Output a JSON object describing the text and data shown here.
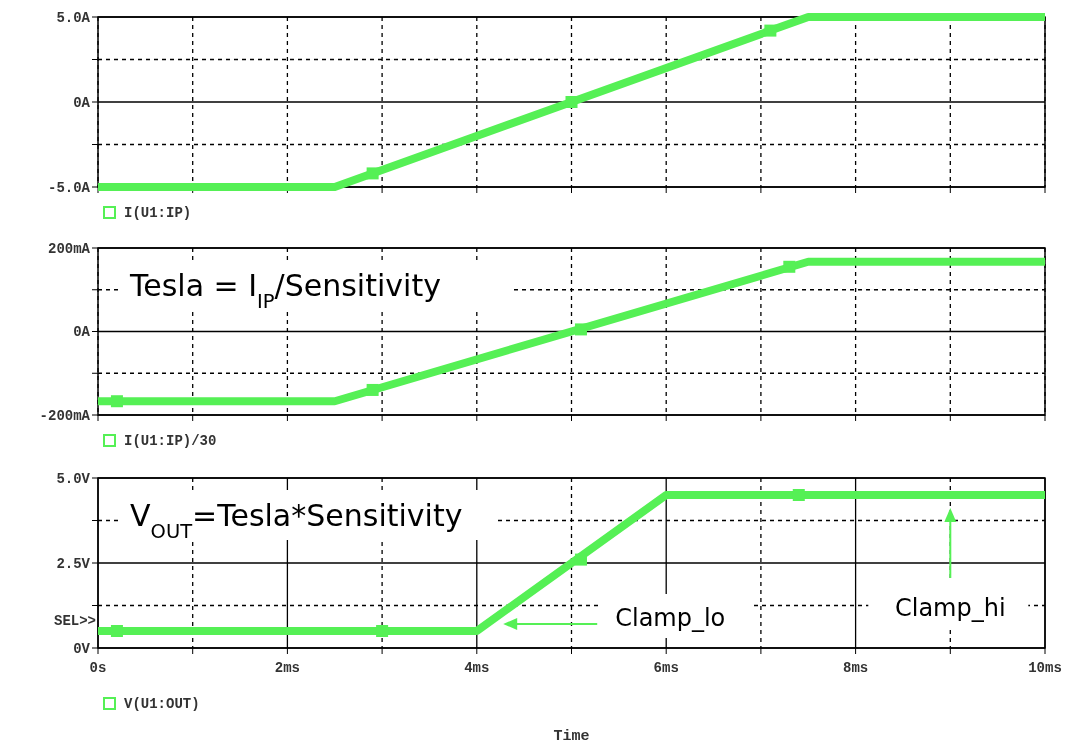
{
  "chart_data": [
    {
      "type": "line",
      "x": [
        0,
        2.5,
        7.5,
        10
      ],
      "xlim": [
        0,
        10
      ],
      "xticks": [
        {
          "value": 0,
          "label": null
        },
        {
          "value": 1,
          "label": null
        },
        {
          "value": 2,
          "label": null
        },
        {
          "value": 3,
          "label": null
        },
        {
          "value": 4,
          "label": null
        },
        {
          "value": 5,
          "label": null
        },
        {
          "value": 6,
          "label": null
        },
        {
          "value": 7,
          "label": null
        },
        {
          "value": 8,
          "label": null
        },
        {
          "value": 9,
          "label": null
        },
        {
          "value": 10,
          "label": null
        }
      ],
      "ylim": [
        -5,
        5
      ],
      "yticks": [
        {
          "value": -5,
          "label": "-5.0A"
        },
        {
          "value": -2.5,
          "label": null
        },
        {
          "value": 0,
          "label": "0A"
        },
        {
          "value": 2.5,
          "label": null
        },
        {
          "value": 5,
          "label": "5.0A"
        }
      ],
      "grid": true,
      "legend": "bottom left",
      "tick_labels": "y",
      "line_style": "solid",
      "series": [
        {
          "name": "I(U1:IP)",
          "color": "#55f055",
          "values": [
            -5,
            -5,
            5,
            5
          ],
          "marker": "none"
        },
        {
          "type": "scatter",
          "color": "#55f055",
          "x": [
            2.9,
            5.0,
            7.1
          ],
          "values": [
            -4.2,
            0,
            4.2
          ],
          "marker": "square"
        }
      ]
    },
    {
      "type": "line",
      "x": [
        0,
        2.5,
        7.5,
        10
      ],
      "xlim": [
        0,
        10
      ],
      "xticks": [
        {
          "value": 0,
          "label": null
        },
        {
          "value": 1,
          "label": null
        },
        {
          "value": 2,
          "label": null
        },
        {
          "value": 3,
          "label": null
        },
        {
          "value": 4,
          "label": null
        },
        {
          "value": 5,
          "label": null
        },
        {
          "value": 6,
          "label": null
        },
        {
          "value": 7,
          "label": null
        },
        {
          "value": 8,
          "label": null
        },
        {
          "value": 9,
          "label": null
        },
        {
          "value": 10,
          "label": null
        }
      ],
      "ylim": [
        -200,
        200
      ],
      "yticks": [
        {
          "value": -200,
          "label": "-200mA"
        },
        {
          "value": -100,
          "label": null
        },
        {
          "value": 0,
          "label": "0A"
        },
        {
          "value": 100,
          "label": null
        },
        {
          "value": 200,
          "label": "200mA"
        }
      ],
      "grid": true,
      "legend": "bottom left",
      "tick_labels": "y",
      "line_style": "solid",
      "annotations": [
        "Tesla = I$_{IP}$/Sensitivity"
      ],
      "series": [
        {
          "name": "I(U1:IP)/30",
          "color": "#55f055",
          "values": [
            -167,
            -167,
            167,
            167
          ],
          "marker": "none"
        },
        {
          "type": "scatter",
          "color": "#55f055",
          "x": [
            0.2,
            2.9,
            5.1,
            7.3
          ],
          "values": [
            -167,
            -140,
            5,
            155
          ],
          "marker": "square"
        }
      ]
    },
    {
      "type": "line",
      "x": [
        0,
        4,
        6,
        10
      ],
      "xlim": [
        0,
        10
      ],
      "xticks": [
        {
          "value": 0,
          "label": "0s"
        },
        {
          "value": 1,
          "label": null
        },
        {
          "value": 2,
          "label": "2ms"
        },
        {
          "value": 3,
          "label": null
        },
        {
          "value": 4,
          "label": "4ms"
        },
        {
          "value": 5,
          "label": null
        },
        {
          "value": 6,
          "label": "6ms"
        },
        {
          "value": 7,
          "label": null
        },
        {
          "value": 8,
          "label": "8ms"
        },
        {
          "value": 9,
          "label": null
        },
        {
          "value": 10,
          "label": "10ms"
        }
      ],
      "ylim": [
        0,
        5
      ],
      "yticks": [
        {
          "value": 0,
          "label": "0V"
        },
        {
          "value": 1.25,
          "label": null
        },
        {
          "value": 2.5,
          "label": "2.5V"
        },
        {
          "value": 3.75,
          "label": null
        },
        {
          "value": 5,
          "label": "5.0V"
        }
      ],
      "xlabel": "Time",
      "grid": true,
      "legend": "bottom left",
      "line_style": "solid",
      "annotations": [
        "V$_{OUT}$=Tesla*Sensitivity",
        "SEL>>",
        "Clamp_lo",
        "Clamp_hi"
      ],
      "series": [
        {
          "name": "V(U1:OUT)",
          "color": "#55f055",
          "values": [
            0.5,
            0.5,
            4.5,
            4.5
          ],
          "marker": "none"
        },
        {
          "type": "scatter",
          "color": "#55f055",
          "x": [
            0.2,
            3.0,
            5.1,
            7.4
          ],
          "values": [
            0.5,
            0.5,
            2.6,
            4.5
          ],
          "marker": "square"
        }
      ]
    }
  ]
}
